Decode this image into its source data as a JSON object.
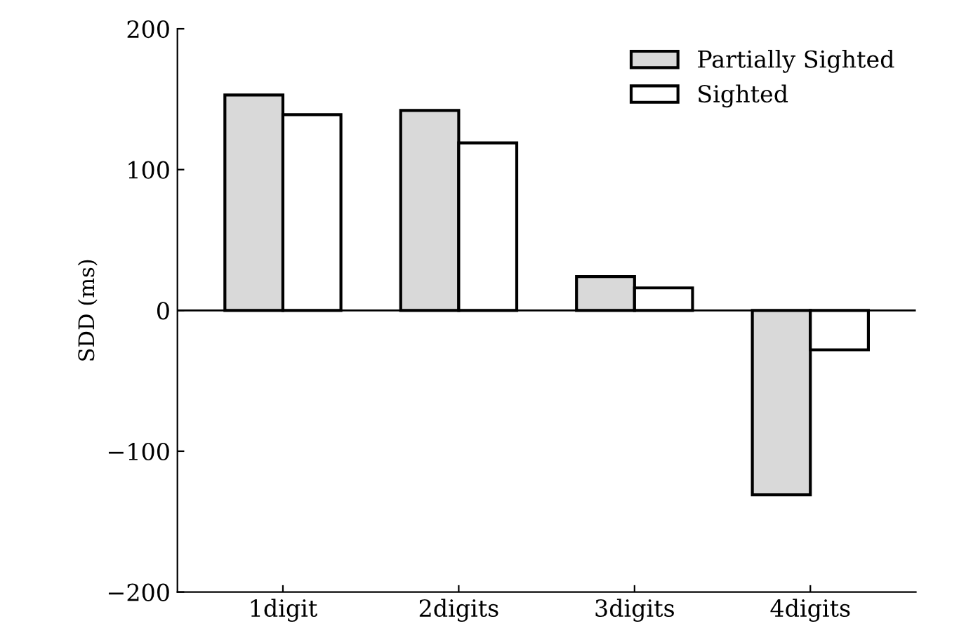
{
  "chart_data": {
    "type": "bar",
    "ylabel": "SDD (ms)",
    "categories": [
      "1digit",
      "2digits",
      "3digits",
      "4digits"
    ],
    "series": [
      {
        "name": "Partially Sighted",
        "color": "#d9d9d9",
        "values": [
          153,
          142,
          24,
          -131
        ]
      },
      {
        "name": "Sighted",
        "color": "#ffffff",
        "values": [
          139,
          119,
          16,
          -28
        ]
      }
    ],
    "ylim": [
      -200,
      200
    ],
    "yticks": [
      {
        "value": -200,
        "label": "−200"
      },
      {
        "value": -100,
        "label": "−100"
      },
      0,
      100,
      200
    ],
    "ref_lines": [
      {
        "axis": "y",
        "value": 0,
        "color": "#000000"
      }
    ],
    "legend": "top right"
  }
}
